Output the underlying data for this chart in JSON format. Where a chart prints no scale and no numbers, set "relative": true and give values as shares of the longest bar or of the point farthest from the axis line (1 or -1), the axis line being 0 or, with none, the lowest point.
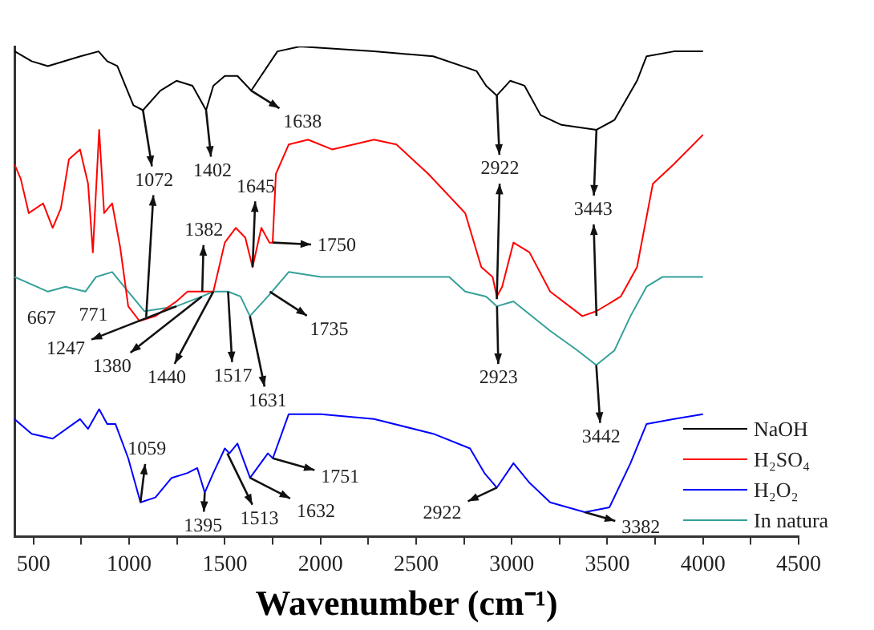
{
  "chart_data": {
    "type": "line",
    "relative": true,
    "xlabel": "Wavenumber (cm⁻¹)",
    "xlim": [
      400,
      4500
    ],
    "xticks": [
      500,
      {
        "value": 750,
        "label": null
      },
      1000,
      {
        "value": 1250,
        "label": null
      },
      1500,
      {
        "value": 1750,
        "label": null
      },
      2000,
      {
        "value": 2250,
        "label": null
      },
      2500,
      {
        "value": 2750,
        "label": null
      },
      3000,
      {
        "value": 3250,
        "label": null
      },
      3500,
      {
        "value": 3750,
        "label": null
      },
      4000,
      {
        "value": 4250,
        "label": null
      },
      4500
    ],
    "grid": false,
    "legend": "bottom right",
    "marker": "none",
    "line_style": "solid",
    "tick_labels": "x",
    "series": [
      {
        "name": "NaOH",
        "color": "#000000",
        "x": [
          402,
          490,
          575,
          745,
          840,
          885,
          938,
          1022,
          1072,
          1163,
          1247,
          1331,
          1402,
          1440,
          1500,
          1566,
          1638,
          1775,
          1893,
          2280,
          2590,
          2816,
          2866,
          2922,
          2992,
          3067,
          3151,
          3260,
          3443,
          3537,
          3655,
          3705,
          3848,
          4000
        ],
        "values": [
          0.99,
          0.97,
          0.96,
          0.98,
          0.99,
          0.97,
          0.96,
          0.88,
          0.87,
          0.91,
          0.93,
          0.92,
          0.87,
          0.92,
          0.94,
          0.94,
          0.91,
          0.99,
          1,
          0.99,
          0.98,
          0.95,
          0.92,
          0.9,
          0.93,
          0.92,
          0.86,
          0.84,
          0.83,
          0.85,
          0.93,
          0.98,
          0.99,
          0.99
        ]
      },
      {
        "name": "H₂SO₄",
        "color": "#ff0000",
        "x": [
          400,
          433,
          475,
          550,
          600,
          643,
          685,
          743,
          785,
          810,
          843,
          869,
          911,
          953,
          995,
          1054,
          1137,
          1247,
          1305,
          1331,
          1382,
          1440,
          1500,
          1557,
          1607,
          1645,
          1691,
          1733,
          1750,
          1767,
          1834,
          1935,
          2061,
          2280,
          2397,
          2564,
          2757,
          2841,
          2900,
          2922,
          2950,
          3009,
          3093,
          3201,
          3369,
          3443,
          3570,
          3655,
          3738,
          3848,
          4000
        ],
        "values": [
          0.76,
          0.73,
          0.66,
          0.68,
          0.63,
          0.67,
          0.77,
          0.79,
          0.72,
          0.58,
          0.83,
          0.66,
          0.68,
          0.59,
          0.47,
          0.44,
          0.45,
          0.48,
          0.5,
          0.5,
          0.5,
          0.5,
          0.6,
          0.63,
          0.61,
          0.55,
          0.63,
          0.6,
          0.6,
          0.74,
          0.8,
          0.81,
          0.79,
          0.81,
          0.8,
          0.74,
          0.66,
          0.55,
          0.53,
          0.49,
          0.51,
          0.6,
          0.58,
          0.5,
          0.45,
          0.46,
          0.49,
          0.55,
          0.72,
          0.76,
          0.82
        ]
      },
      {
        "name": "H₂O₂",
        "color": "#0000ff",
        "x": [
          400,
          490,
          600,
          743,
          785,
          843,
          885,
          928,
          995,
          1059,
          1137,
          1222,
          1305,
          1356,
          1395,
          1440,
          1500,
          1524,
          1566,
          1632,
          1725,
          1751,
          1834,
          2002,
          2280,
          2590,
          2782,
          2857,
          2922,
          3009,
          3093,
          3201,
          3382,
          3511,
          3621,
          3705,
          3848,
          4000
        ],
        "values": [
          0.24,
          0.21,
          0.2,
          0.24,
          0.22,
          0.26,
          0.23,
          0.23,
          0.16,
          0.07,
          0.08,
          0.12,
          0.13,
          0.14,
          0.09,
          0.13,
          0.18,
          0.17,
          0.19,
          0.12,
          0.17,
          0.16,
          0.25,
          0.25,
          0.24,
          0.21,
          0.18,
          0.13,
          0.1,
          0.15,
          0.11,
          0.07,
          0.05,
          0.06,
          0.15,
          0.23,
          0.24,
          0.25
        ]
      },
      {
        "name": "In natura",
        "color": "#35a09a",
        "x": [
          400,
          575,
          667,
          771,
          827,
          911,
          995,
          1080,
          1247,
          1380,
          1440,
          1517,
          1582,
          1631,
          1725,
          1834,
          2002,
          2280,
          2673,
          2757,
          2866,
          2923,
          3009,
          3201,
          3344,
          3442,
          3537,
          3621,
          3705,
          3789,
          4000
        ],
        "values": [
          0.53,
          0.5,
          0.51,
          0.5,
          0.53,
          0.54,
          0.5,
          0.46,
          0.47,
          0.49,
          0.5,
          0.5,
          0.49,
          0.45,
          0.49,
          0.54,
          0.53,
          0.53,
          0.53,
          0.5,
          0.49,
          0.47,
          0.48,
          0.42,
          0.38,
          0.35,
          0.38,
          0.45,
          0.51,
          0.53,
          0.53
        ]
      }
    ],
    "annotations": [
      {
        "text": "1072",
        "x": 1072,
        "y": 0.87
      },
      {
        "text": "1402",
        "x": 1402,
        "y": 0.87
      },
      {
        "text": "1638",
        "x": 1638,
        "y": 0.91
      },
      {
        "text": "2922",
        "x": 2922,
        "y": 0.9
      },
      {
        "text": "3443",
        "x": 3443,
        "y": 0.83
      },
      {
        "text": "1645",
        "x": 1645,
        "y": 0.55
      },
      {
        "text": "1750",
        "x": 1750,
        "y": 0.6
      },
      {
        "text": "1382",
        "x": 1382,
        "y": 0.5
      },
      {
        "text": "667",
        "x": 667,
        "y": 0.51
      },
      {
        "text": "771",
        "x": 771,
        "y": 0.5
      },
      {
        "text": "1247",
        "x": 1247,
        "y": 0.47
      },
      {
        "text": "1380",
        "x": 1380,
        "y": 0.49
      },
      {
        "text": "1440",
        "x": 1440,
        "y": 0.5
      },
      {
        "text": "1517",
        "x": 1517,
        "y": 0.5
      },
      {
        "text": "1631",
        "x": 1631,
        "y": 0.45
      },
      {
        "text": "1735",
        "x": 1735,
        "y": 0.5
      },
      {
        "text": "2923",
        "x": 2923,
        "y": 0.47
      },
      {
        "text": "3442",
        "x": 3442,
        "y": 0.35
      },
      {
        "text": "1059",
        "x": 1059,
        "y": 0.07
      },
      {
        "text": "1395",
        "x": 1395,
        "y": 0.09
      },
      {
        "text": "1513",
        "x": 1513,
        "y": 0.17
      },
      {
        "text": "1632",
        "x": 1632,
        "y": 0.12
      },
      {
        "text": "1751",
        "x": 1751,
        "y": 0.16
      },
      {
        "text": "2922",
        "x": 2922,
        "y": 0.1
      },
      {
        "text": "3382",
        "x": 3382,
        "y": 0.05
      }
    ]
  }
}
